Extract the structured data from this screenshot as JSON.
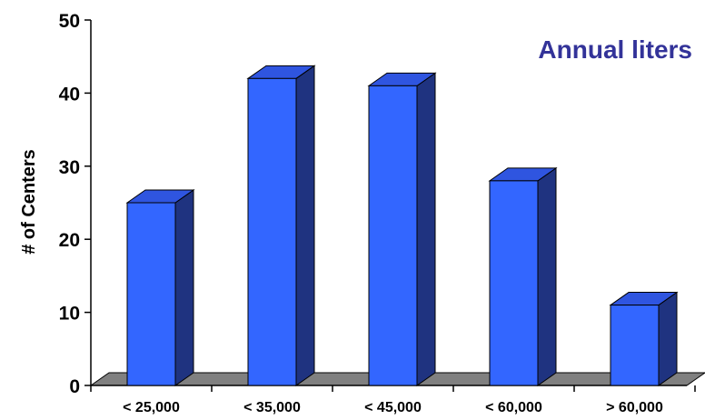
{
  "chart_data": {
    "type": "bar",
    "title": "Annual liters",
    "xlabel": "",
    "ylabel": "# of Centers",
    "categories": [
      "< 25,000",
      "< 35,000",
      "< 45,000",
      "< 60,000",
      "> 60,000"
    ],
    "values": [
      25,
      42,
      41,
      28,
      11
    ],
    "ylim": [
      0,
      50
    ],
    "yticks": [
      "0",
      "10",
      "20",
      "30",
      "40",
      "50"
    ],
    "grid": false,
    "legend": "none",
    "style": "3d-column"
  },
  "colors": {
    "bar_front": "#3366ff",
    "bar_side": "#1f3380",
    "bar_top": "#2f55e0",
    "floor": "#808080",
    "title": "#333399",
    "axis": "#000000"
  }
}
